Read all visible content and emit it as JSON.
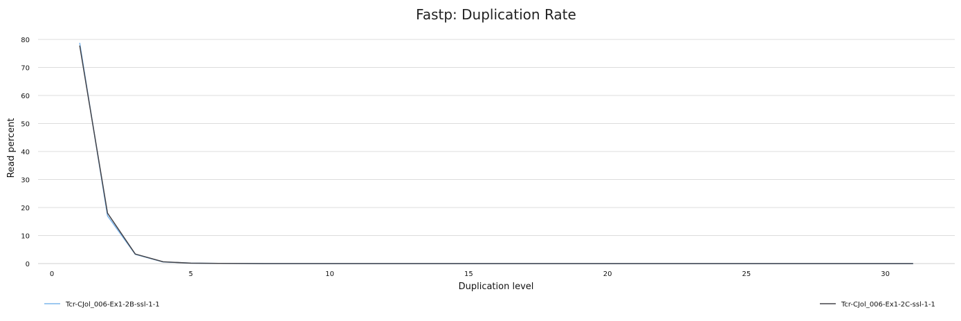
{
  "chart_data": {
    "type": "line",
    "title": "Fastp: Duplication Rate",
    "xlabel": "Duplication level",
    "ylabel": "Read percent",
    "xlim": [
      -0.5,
      32.5
    ],
    "ylim": [
      0,
      80
    ],
    "xticks": [
      0,
      5,
      10,
      15,
      20,
      25,
      30
    ],
    "yticks": [
      0,
      10,
      20,
      30,
      40,
      50,
      60,
      70,
      80
    ],
    "grid": "horizontal",
    "legend": "bottom",
    "series": [
      {
        "name": "Tcr-CJol_006-Ex1-2B-ssl-1-1",
        "color": "#7cb5ec",
        "x": [
          1,
          2,
          3,
          4,
          5,
          6,
          7,
          8,
          9,
          10,
          11,
          12,
          13,
          14,
          15,
          16,
          17,
          18,
          19,
          20,
          21,
          22,
          23,
          24,
          25,
          26,
          27,
          28,
          29,
          30,
          31
        ],
        "y": [
          78.8,
          17.0,
          3.3,
          0.6,
          0.15,
          0.05,
          0.02,
          0.01,
          0.01,
          0,
          0,
          0,
          0,
          0,
          0,
          0,
          0,
          0,
          0,
          0,
          0,
          0,
          0,
          0,
          0,
          0,
          0,
          0,
          0,
          0,
          0
        ]
      },
      {
        "name": "Tcr-CJol_006-Ex1-2C-ssl-1-1",
        "color": "#434348",
        "x": [
          1,
          2,
          3,
          4,
          5,
          6,
          7,
          8,
          9,
          10,
          11,
          12,
          13,
          14,
          15,
          16,
          17,
          18,
          19,
          20,
          21,
          22,
          23,
          24,
          25,
          26,
          27,
          28,
          29,
          30,
          31
        ],
        "y": [
          77.8,
          18.0,
          3.4,
          0.65,
          0.15,
          0.05,
          0.02,
          0.01,
          0.01,
          0,
          0,
          0,
          0,
          0,
          0,
          0,
          0,
          0,
          0,
          0,
          0,
          0,
          0,
          0,
          0,
          0,
          0,
          0,
          0,
          0,
          0
        ]
      }
    ]
  }
}
